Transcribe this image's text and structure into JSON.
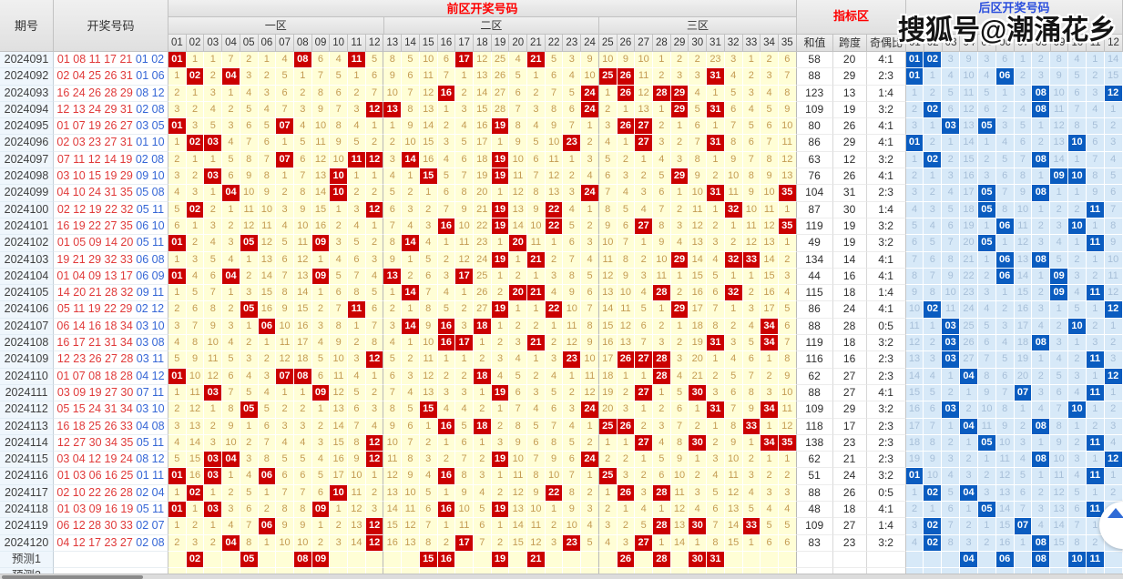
{
  "header": {
    "issue_col": "期号",
    "draw_col": "开奖号码",
    "front_title": "前区开奖号码",
    "zone1": "一区",
    "zone2": "二区",
    "zone3": "三区",
    "indicator_title": "指标区",
    "back_title": "后区开奖号码",
    "indicator_cols": [
      "和值",
      "跨度",
      "奇偶比"
    ],
    "front_numbers": [
      "01",
      "02",
      "03",
      "04",
      "05",
      "06",
      "07",
      "08",
      "09",
      "10",
      "11",
      "12",
      "13",
      "14",
      "15",
      "16",
      "17",
      "18",
      "19",
      "20",
      "21",
      "22",
      "23",
      "24",
      "25",
      "26",
      "27",
      "28",
      "29",
      "30",
      "31",
      "32",
      "33",
      "34",
      "35"
    ],
    "back_numbers": [
      "01",
      "02",
      "03",
      "04",
      "05",
      "06",
      "07",
      "08",
      "09",
      "10",
      "11",
      "12"
    ]
  },
  "watermark": "搜狐号@潮涌花乡",
  "colors": {
    "front_ball": "#cb0000",
    "back_ball": "#0a5cc0",
    "front_cell_bg": "#fffed6",
    "back_cell_bg": "#d7e9f8",
    "front_miss_text": "#c49b52",
    "back_miss_text": "#a7bfd8",
    "title_red": "#fe0000",
    "title_blue": "#2b4fdd"
  },
  "seed_miss": {
    "front": [
      0,
      1,
      1,
      7,
      2,
      1,
      4,
      0,
      6,
      4,
      0,
      5,
      8,
      5,
      10,
      6,
      0,
      12,
      25,
      4,
      0,
      5,
      3,
      9,
      10,
      9,
      10,
      1,
      2,
      2,
      23,
      3,
      1,
      2,
      6
    ],
    "back": [
      0,
      0,
      3,
      9,
      3,
      6,
      1,
      2,
      8,
      4,
      1,
      14
    ]
  },
  "rows": [
    {
      "issue": "2024091",
      "front": [
        1,
        8,
        11,
        17,
        21
      ],
      "back": [
        1,
        2
      ],
      "sum": 58,
      "span": 20,
      "odd_even": "4:1"
    },
    {
      "issue": "2024092",
      "front": [
        2,
        4,
        25,
        26,
        31
      ],
      "back": [
        1,
        6
      ],
      "sum": 88,
      "span": 29,
      "odd_even": "2:3"
    },
    {
      "issue": "2024093",
      "front": [
        16,
        24,
        26,
        28,
        29
      ],
      "back": [
        8,
        12
      ],
      "sum": 123,
      "span": 13,
      "odd_even": "1:4"
    },
    {
      "issue": "2024094",
      "front": [
        12,
        13,
        24,
        29,
        31
      ],
      "back": [
        2,
        8
      ],
      "sum": 109,
      "span": 19,
      "odd_even": "3:2"
    },
    {
      "issue": "2024095",
      "front": [
        1,
        7,
        19,
        26,
        27
      ],
      "back": [
        3,
        5
      ],
      "sum": 80,
      "span": 26,
      "odd_even": "4:1"
    },
    {
      "issue": "2024096",
      "front": [
        2,
        3,
        23,
        27,
        31
      ],
      "back": [
        1,
        10
      ],
      "sum": 86,
      "span": 29,
      "odd_even": "4:1"
    },
    {
      "issue": "2024097",
      "front": [
        7,
        11,
        12,
        14,
        19
      ],
      "back": [
        2,
        8
      ],
      "sum": 63,
      "span": 12,
      "odd_even": "3:2"
    },
    {
      "issue": "2024098",
      "front": [
        3,
        10,
        15,
        19,
        29
      ],
      "back": [
        9,
        10
      ],
      "sum": 76,
      "span": 26,
      "odd_even": "4:1"
    },
    {
      "issue": "2024099",
      "front": [
        4,
        10,
        24,
        31,
        35
      ],
      "back": [
        5,
        8
      ],
      "sum": 104,
      "span": 31,
      "odd_even": "2:3"
    },
    {
      "issue": "2024100",
      "front": [
        2,
        12,
        19,
        22,
        32
      ],
      "back": [
        5,
        11
      ],
      "sum": 87,
      "span": 30,
      "odd_even": "1:4"
    },
    {
      "issue": "2024101",
      "front": [
        16,
        19,
        22,
        27,
        35
      ],
      "back": [
        6,
        10
      ],
      "sum": 119,
      "span": 19,
      "odd_even": "3:2"
    },
    {
      "issue": "2024102",
      "front": [
        1,
        5,
        9,
        14,
        20
      ],
      "back": [
        5,
        11
      ],
      "sum": 49,
      "span": 19,
      "odd_even": "3:2"
    },
    {
      "issue": "2024103",
      "front": [
        19,
        21,
        29,
        32,
        33
      ],
      "back": [
        6,
        8
      ],
      "sum": 134,
      "span": 14,
      "odd_even": "4:1"
    },
    {
      "issue": "2024104",
      "front": [
        1,
        4,
        9,
        13,
        17
      ],
      "back": [
        6,
        9
      ],
      "sum": 44,
      "span": 16,
      "odd_even": "4:1"
    },
    {
      "issue": "2024105",
      "front": [
        14,
        20,
        21,
        28,
        32
      ],
      "back": [
        9,
        11
      ],
      "sum": 115,
      "span": 18,
      "odd_even": "1:4"
    },
    {
      "issue": "2024106",
      "front": [
        5,
        11,
        19,
        22,
        29
      ],
      "back": [
        2,
        12
      ],
      "sum": 86,
      "span": 24,
      "odd_even": "4:1"
    },
    {
      "issue": "2024107",
      "front": [
        6,
        14,
        16,
        18,
        34
      ],
      "back": [
        3,
        10
      ],
      "sum": 88,
      "span": 28,
      "odd_even": "0:5"
    },
    {
      "issue": "2024108",
      "front": [
        16,
        17,
        21,
        31,
        34
      ],
      "back": [
        3,
        8
      ],
      "sum": 119,
      "span": 18,
      "odd_even": "3:2"
    },
    {
      "issue": "2024109",
      "front": [
        12,
        23,
        26,
        27,
        28
      ],
      "back": [
        3,
        11
      ],
      "sum": 116,
      "span": 16,
      "odd_even": "2:3"
    },
    {
      "issue": "2024110",
      "front": [
        1,
        7,
        8,
        18,
        28
      ],
      "back": [
        4,
        12
      ],
      "sum": 62,
      "span": 27,
      "odd_even": "2:3"
    },
    {
      "issue": "2024111",
      "front": [
        3,
        9,
        19,
        27,
        30
      ],
      "back": [
        7,
        11
      ],
      "sum": 88,
      "span": 27,
      "odd_even": "4:1"
    },
    {
      "issue": "2024112",
      "front": [
        5,
        15,
        24,
        31,
        34
      ],
      "back": [
        3,
        10
      ],
      "sum": 109,
      "span": 29,
      "odd_even": "3:2"
    },
    {
      "issue": "2024113",
      "front": [
        16,
        18,
        25,
        26,
        33
      ],
      "back": [
        4,
        8
      ],
      "sum": 118,
      "span": 17,
      "odd_even": "2:3"
    },
    {
      "issue": "2024114",
      "front": [
        12,
        27,
        30,
        34,
        35
      ],
      "back": [
        5,
        11
      ],
      "sum": 138,
      "span": 23,
      "odd_even": "2:3"
    },
    {
      "issue": "2024115",
      "front": [
        3,
        4,
        12,
        19,
        24
      ],
      "back": [
        8,
        12
      ],
      "sum": 62,
      "span": 21,
      "odd_even": "2:3"
    },
    {
      "issue": "2024116",
      "front": [
        1,
        3,
        6,
        16,
        25
      ],
      "back": [
        1,
        11
      ],
      "sum": 51,
      "span": 24,
      "odd_even": "3:2"
    },
    {
      "issue": "2024117",
      "front": [
        2,
        10,
        22,
        26,
        28
      ],
      "back": [
        2,
        4
      ],
      "sum": 88,
      "span": 26,
      "odd_even": "0:5"
    },
    {
      "issue": "2024118",
      "front": [
        1,
        3,
        9,
        16,
        19
      ],
      "back": [
        5,
        11
      ],
      "sum": 48,
      "span": 18,
      "odd_even": "4:1"
    },
    {
      "issue": "2024119",
      "front": [
        6,
        12,
        28,
        30,
        33
      ],
      "back": [
        2,
        7
      ],
      "sum": 109,
      "span": 27,
      "odd_even": "1:4"
    },
    {
      "issue": "2024120",
      "front": [
        4,
        12,
        17,
        23,
        27
      ],
      "back": [
        2,
        8
      ],
      "sum": 83,
      "span": 23,
      "odd_even": "3:2"
    }
  ],
  "predictions": [
    {
      "label": "预测1",
      "front": [
        2,
        5,
        8,
        9,
        15,
        16,
        19,
        21,
        26,
        28,
        30,
        31
      ],
      "back": [
        4,
        6,
        8,
        10,
        11
      ]
    },
    {
      "label": "预测2",
      "front": [],
      "back": []
    }
  ]
}
